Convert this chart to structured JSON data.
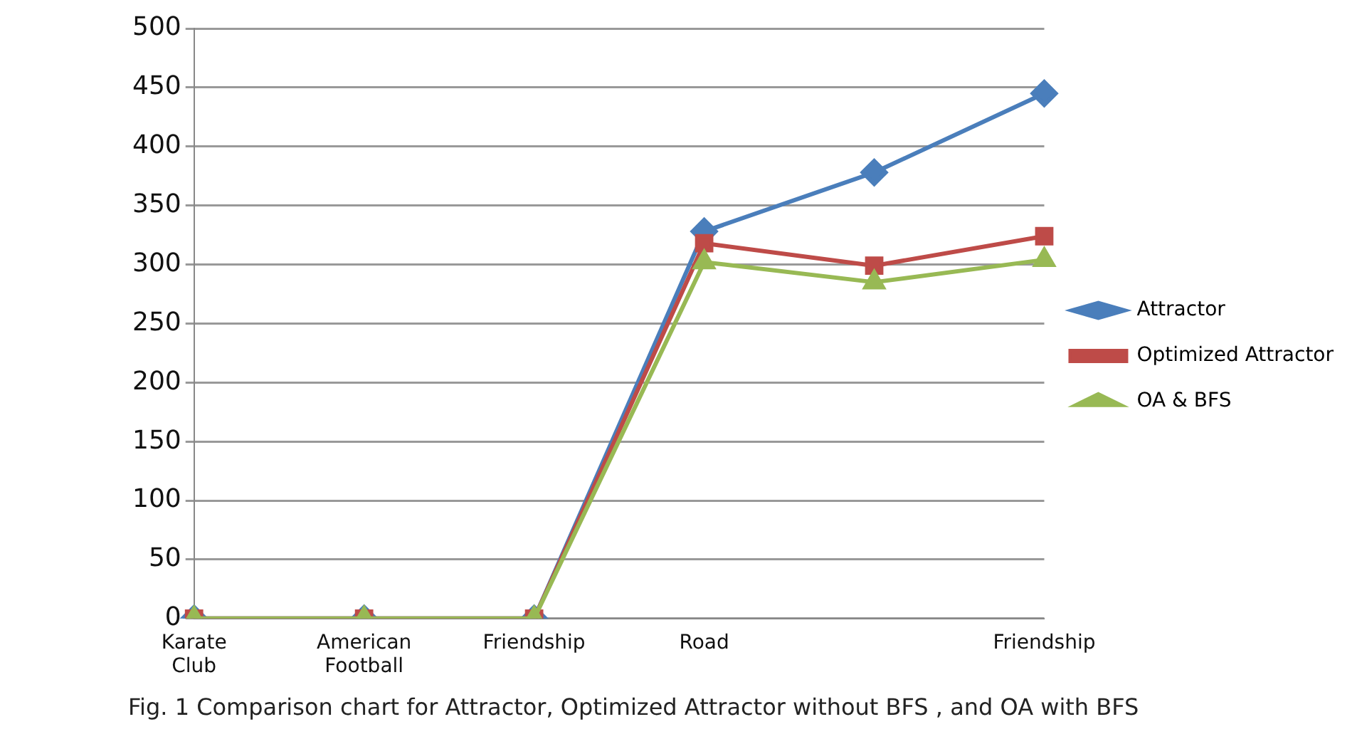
{
  "chart_data": {
    "type": "line",
    "categories": [
      "Karate Club",
      "American Football",
      "Friendship",
      "Road",
      null,
      "Friendship"
    ],
    "series": [
      {
        "name": "Attractor",
        "color": "#4a7ebb",
        "marker": "diamond",
        "values": [
          0,
          0,
          0,
          328,
          378,
          445
        ]
      },
      {
        "name": "Optimized Attractor",
        "color": "#be4b48",
        "marker": "square",
        "values": [
          0,
          0,
          0,
          318,
          299,
          324
        ]
      },
      {
        "name": "OA & BFS",
        "color": "#98b954",
        "marker": "triangle",
        "values": [
          0,
          0,
          0,
          302,
          285,
          304
        ]
      }
    ],
    "ylim": [
      0,
      500
    ],
    "yticks": [
      0,
      50,
      100,
      150,
      200,
      250,
      300,
      350,
      400,
      450,
      500
    ],
    "grid": "y",
    "legend": "right",
    "line_style": "solid",
    "annotations": [
      "Fig. 1  Comparison chart for Attractor, Optimized Attractor without BFS , and OA with BFS"
    ]
  }
}
